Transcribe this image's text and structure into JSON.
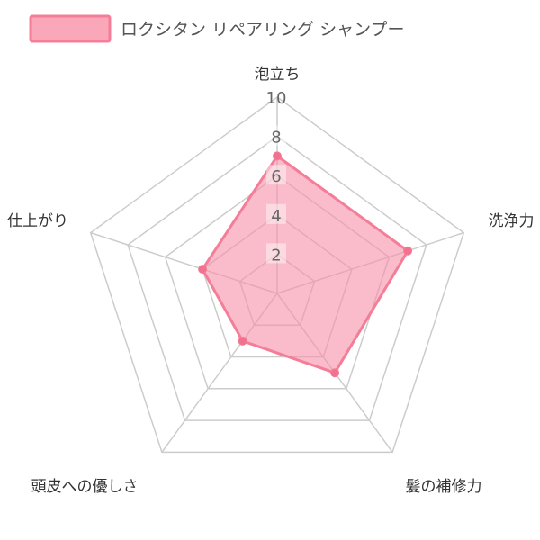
{
  "chart_data": {
    "type": "radar",
    "axes": [
      "泡立ち",
      "洗浄力",
      "髪の補修力",
      "頭皮への優しさ",
      "仕上がり"
    ],
    "series": [
      {
        "name": "ロクシタン リペアリング シャンプー",
        "values": [
          7,
          7,
          5,
          3,
          4
        ]
      }
    ],
    "r_range": [
      0,
      10
    ],
    "ticks": [
      "2",
      "4",
      "6",
      "8",
      "10"
    ],
    "grid": true,
    "legend_position": "top",
    "colors": {
      "fill": "#f78fa7",
      "stroke": "#f47d98",
      "point": "#f2718f",
      "grid": "#cccccc",
      "tick_bg": "#ffffff"
    }
  }
}
